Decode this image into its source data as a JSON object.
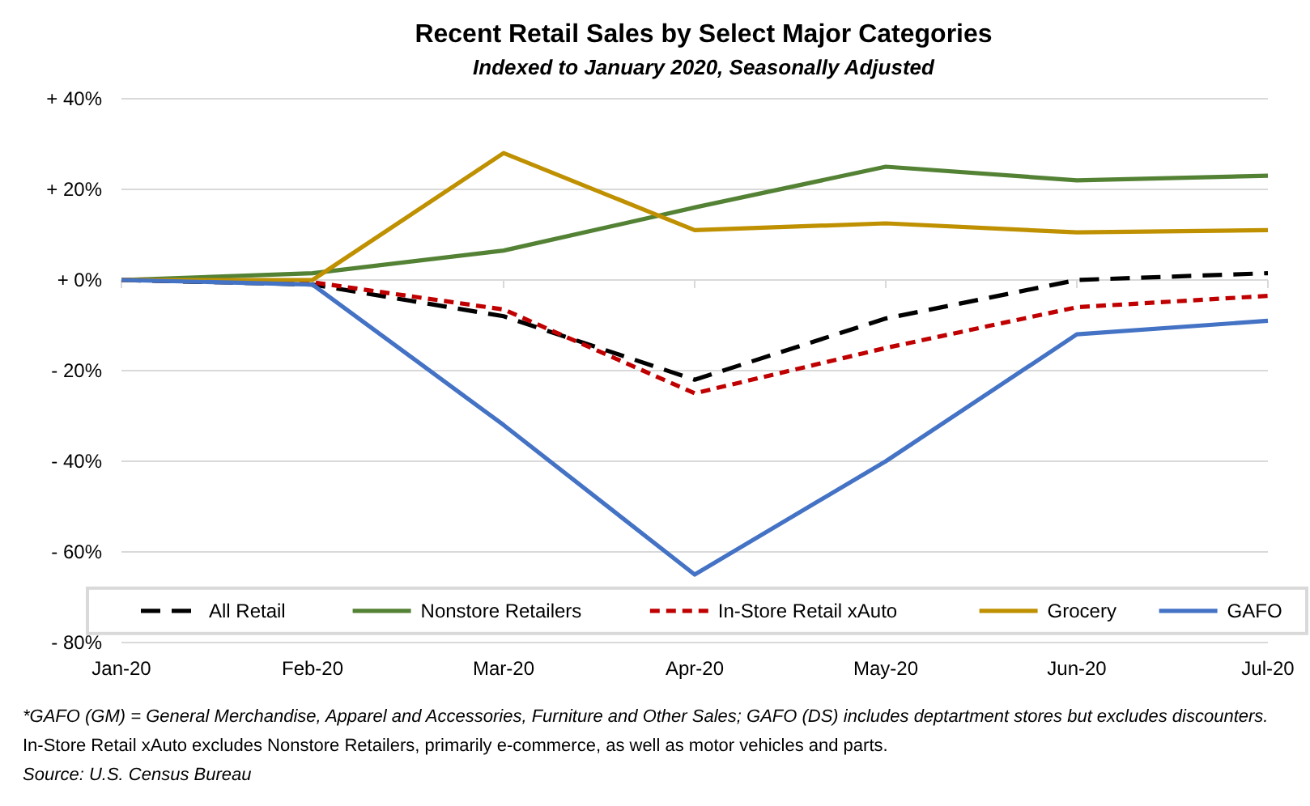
{
  "chart_data": {
    "type": "line",
    "title": "Recent Retail Sales by Select Major Categories",
    "subtitle": "Indexed to January 2020, Seasonally Adjusted",
    "categories": [
      "Jan-20",
      "Feb-20",
      "Mar-20",
      "Apr-20",
      "May-20",
      "Jun-20",
      "Jul-20"
    ],
    "series": [
      {
        "name": "All Retail",
        "color": "#000000",
        "line_style": "dashed",
        "values": [
          0,
          -1,
          -8,
          -22,
          -8.5,
          0,
          1.5
        ]
      },
      {
        "name": "Nonstore Retailers",
        "color": "#548235",
        "line_style": "solid",
        "values": [
          0,
          1.5,
          6.5,
          16,
          25,
          22,
          23
        ]
      },
      {
        "name": "In-Store Retail xAuto",
        "color": "#c00000",
        "line_style": "dotted",
        "values": [
          0,
          -0.5,
          -6.5,
          -25,
          -15,
          -6,
          -3.5
        ]
      },
      {
        "name": "Grocery",
        "color": "#bf9000",
        "line_style": "solid",
        "values": [
          0,
          0,
          28,
          11,
          12.5,
          10.5,
          11
        ]
      },
      {
        "name": "GAFO",
        "color": "#4472c4",
        "line_style": "solid",
        "values": [
          0,
          -1,
          -32,
          -65,
          -40,
          -12,
          -9
        ]
      }
    ],
    "ylim": [
      -80,
      40
    ],
    "yticks": [
      {
        "value": -80,
        "label": "- 80%"
      },
      {
        "value": -60,
        "label": "- 60%"
      },
      {
        "value": -40,
        "label": "- 40%"
      },
      {
        "value": -20,
        "label": "- 20%"
      },
      {
        "value": 0,
        "label": "+ 0%"
      },
      {
        "value": 20,
        "label": "+ 20%"
      },
      {
        "value": 40,
        "label": "+ 40%"
      }
    ],
    "grid": "y",
    "legend": "bottom",
    "marker": "none",
    "annotations": [
      "*GAFO (GM) = General Merchandise, Apparel and Accessories, Furniture and Other Sales; GAFO (DS) includes deptartment stores but excludes discounters.",
      "In-Store Retail xAuto excludes Nonstore Retailers, primarily e-commerce, as well as motor vehicles and parts.",
      "Source: U.S. Census Bureau"
    ]
  }
}
